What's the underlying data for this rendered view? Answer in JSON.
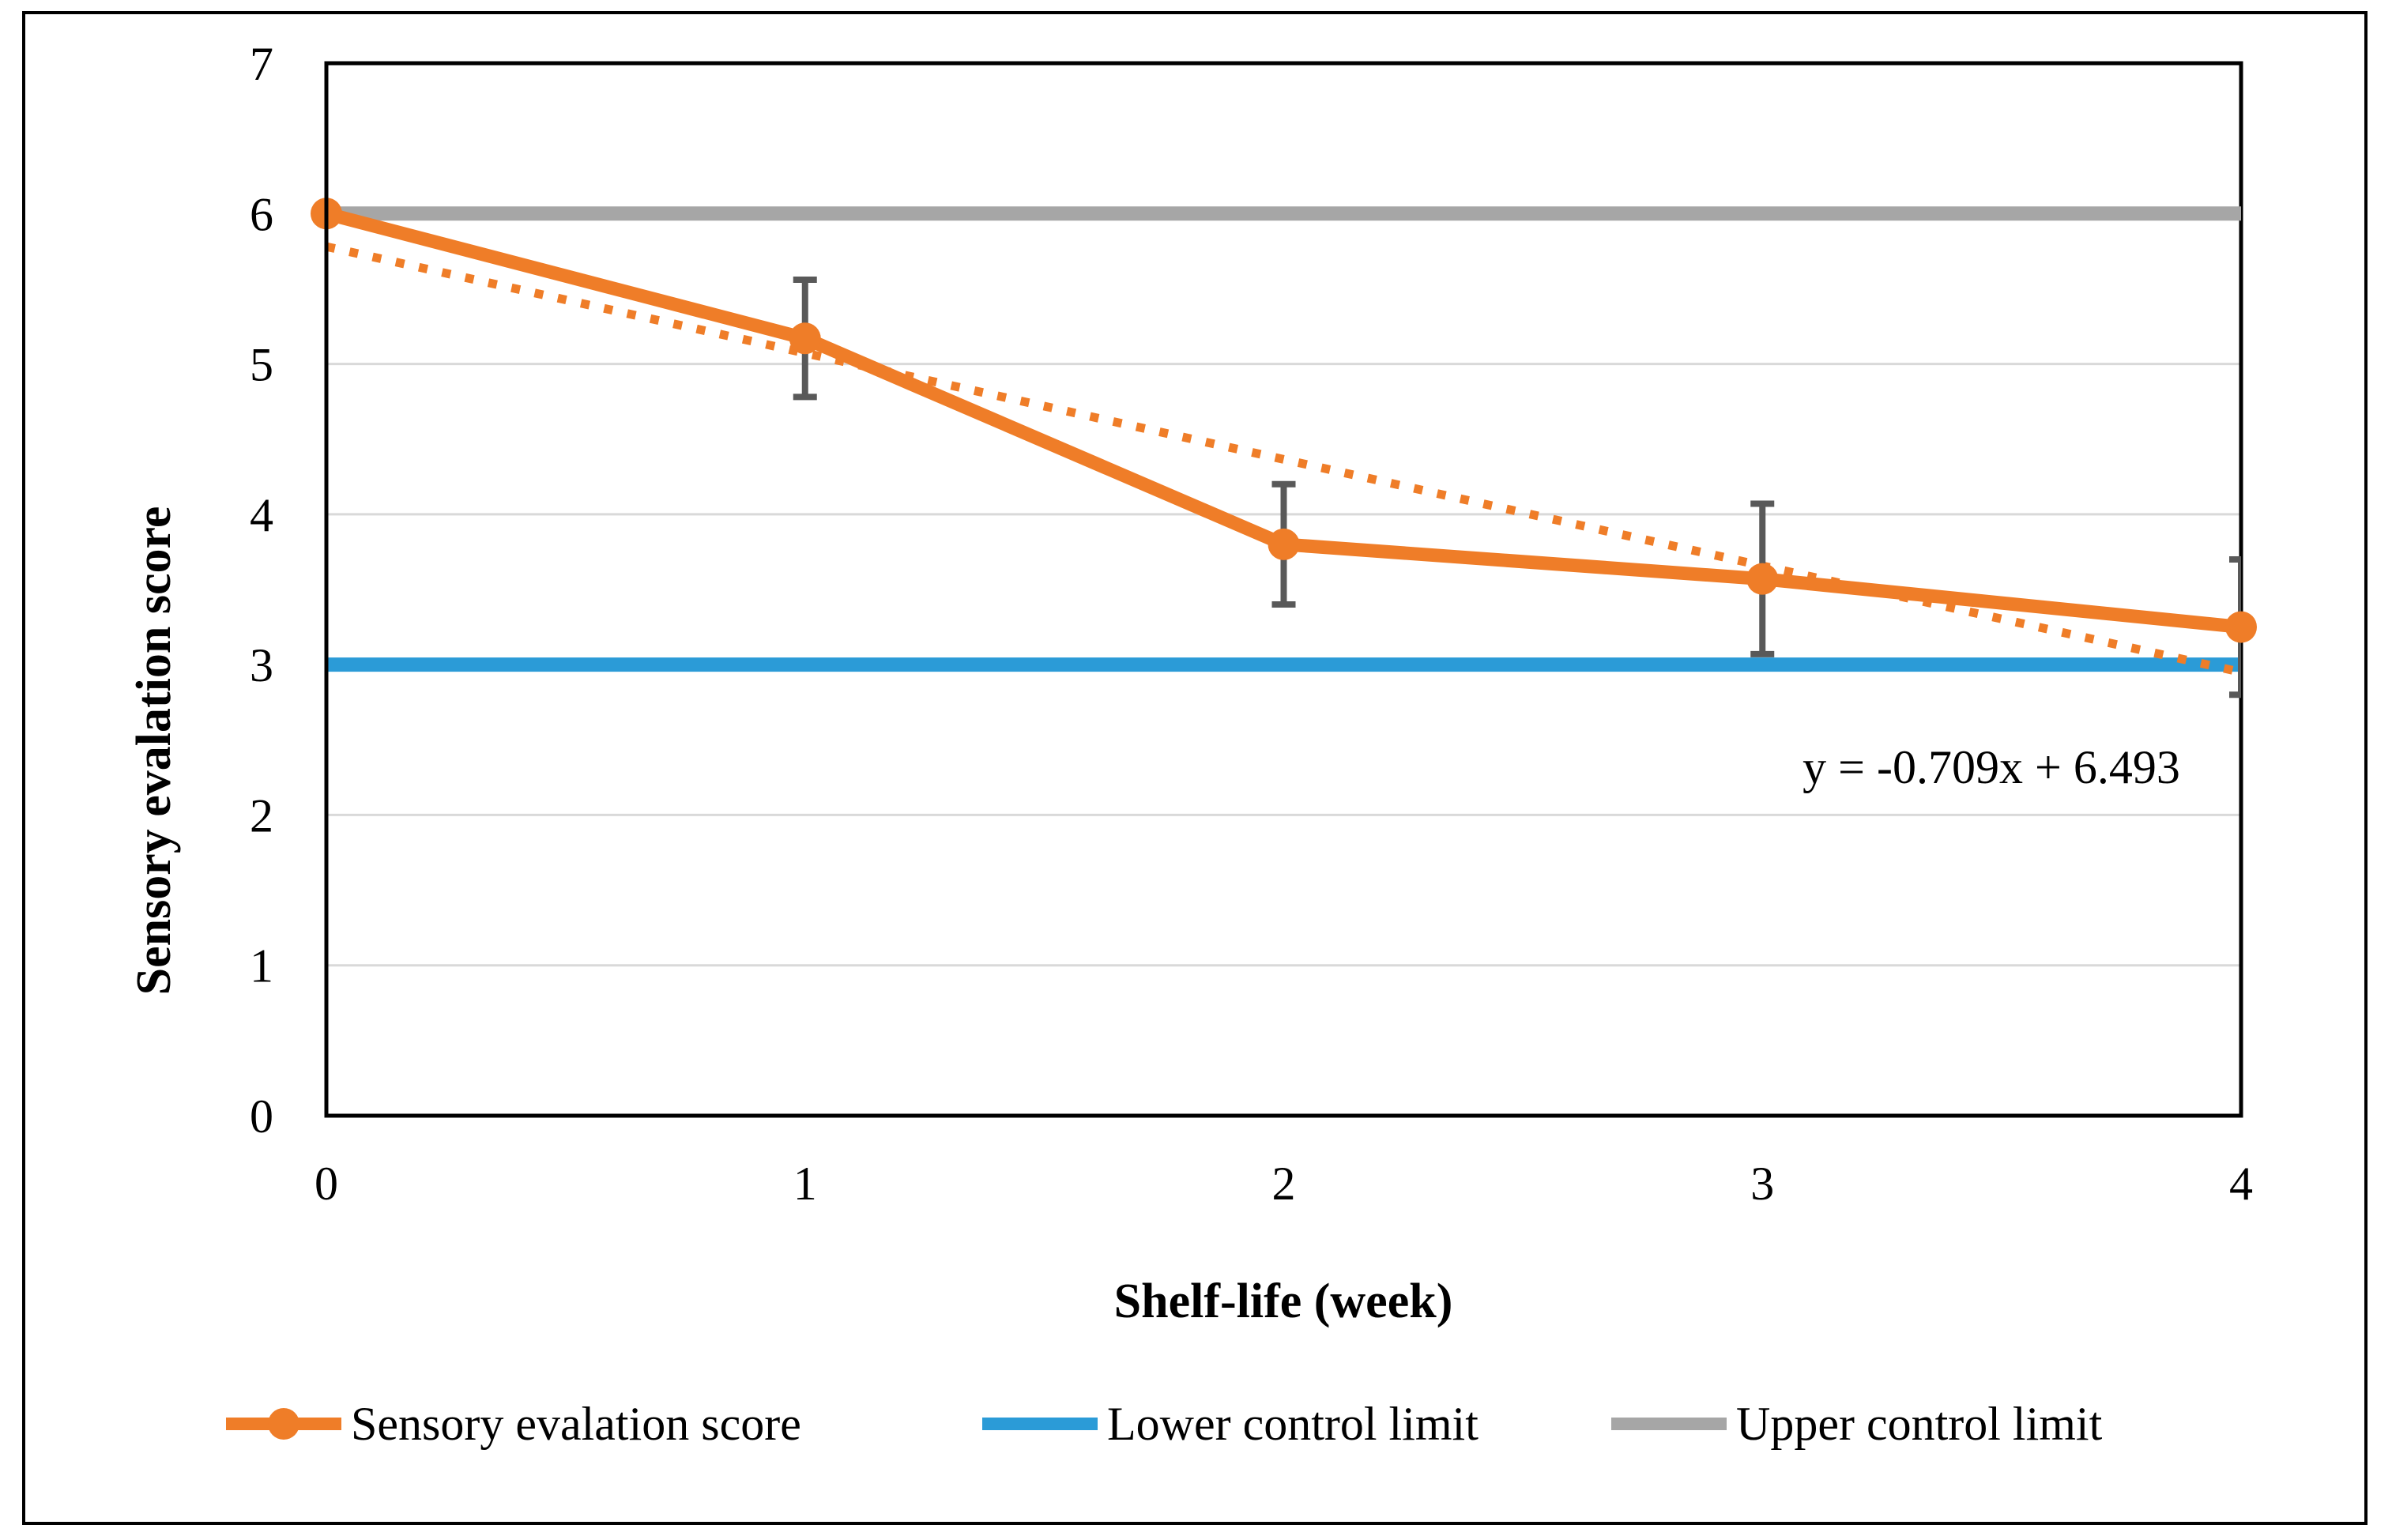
{
  "figure": {
    "background": "#ffffff",
    "border_color": "#000000"
  },
  "chart_data": {
    "type": "line",
    "title": "",
    "xlabel": "Shelf-life (week)",
    "ylabel": "Sensory evalation score",
    "xlim": [
      0,
      4
    ],
    "ylim": [
      0,
      7
    ],
    "xticks": [
      "0",
      "1",
      "2",
      "3",
      "4"
    ],
    "yticks": [
      "0",
      "1",
      "2",
      "3",
      "4",
      "5",
      "6",
      "7"
    ],
    "grid": true,
    "gridline_color": "#d9d9d9",
    "axis_color": "#000000",
    "error_bar_color": "#595959",
    "legend_position": "bottom",
    "x": [
      0,
      1,
      2,
      3,
      4
    ],
    "series": [
      {
        "name": "Sensory evalation score",
        "type": "line_markers",
        "color": "#ef7d28",
        "values": [
          6.0,
          5.17,
          3.8,
          3.57,
          3.25
        ],
        "error": [
          0,
          0.39,
          0.4,
          0.5,
          0.45
        ]
      },
      {
        "name": "Lower control limit",
        "type": "hline",
        "color": "#2b9bd7",
        "value": 3
      },
      {
        "name": "Upper control limit",
        "type": "hline",
        "color": "#a6a6a6",
        "value": 6
      }
    ],
    "trendline": {
      "for_series": "Sensory evalation score",
      "style": "dotted",
      "color": "#ef7d28",
      "equation": "y = -0.709x + 6.493",
      "x_start": 0,
      "y_start": 5.78,
      "x_end": 4,
      "y_end": 2.95
    }
  }
}
